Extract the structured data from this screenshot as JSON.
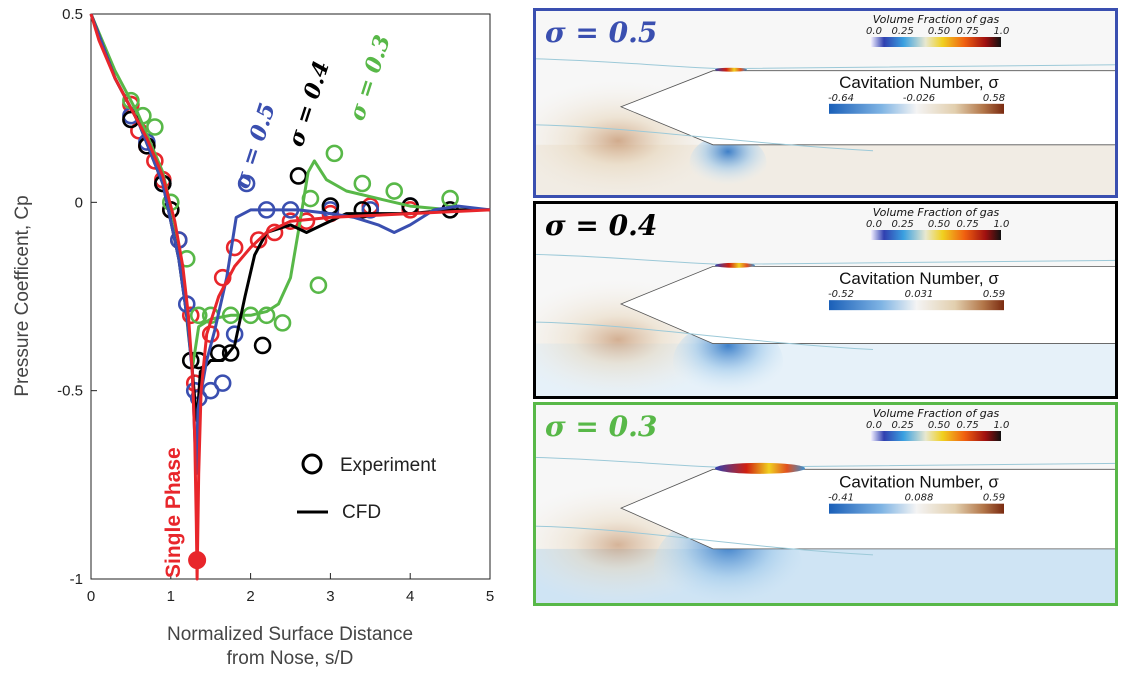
{
  "chart_data": {
    "type": "line",
    "xlabel": [
      "Normalized Surface Distance",
      "from Nose, s/D"
    ],
    "ylabel": "Pressure Coefficent, Cp",
    "xlim": [
      0,
      5
    ],
    "ylim": [
      -1,
      0.5
    ],
    "xticks": [
      "0",
      "1",
      "2",
      "3",
      "4",
      "5"
    ],
    "yticks": [
      "0.5",
      "0",
      "-0.5",
      "-1"
    ],
    "legend": {
      "experiment": "Experiment",
      "cfd": "CFD"
    },
    "series": [
      {
        "name": "Single Phase",
        "color": "#e8262b",
        "cfd": [
          [
            0,
            0.5
          ],
          [
            0.1,
            0.43
          ],
          [
            0.3,
            0.33
          ],
          [
            0.5,
            0.25
          ],
          [
            0.7,
            0.17
          ],
          [
            0.9,
            0.07
          ],
          [
            1.05,
            -0.05
          ],
          [
            1.15,
            -0.17
          ],
          [
            1.22,
            -0.3
          ],
          [
            1.27,
            -0.45
          ],
          [
            1.3,
            -0.62
          ],
          [
            1.32,
            -0.85
          ],
          [
            1.33,
            -1.0
          ],
          [
            1.35,
            -0.72
          ],
          [
            1.38,
            -0.5
          ],
          [
            1.45,
            -0.35
          ],
          [
            1.6,
            -0.25
          ],
          [
            1.8,
            -0.17
          ],
          [
            2.0,
            -0.12
          ],
          [
            2.2,
            -0.08
          ],
          [
            2.5,
            -0.05
          ],
          [
            3.0,
            -0.04
          ],
          [
            3.5,
            -0.035
          ],
          [
            4.0,
            -0.03
          ],
          [
            4.5,
            -0.025
          ],
          [
            5.0,
            -0.02
          ]
        ],
        "experiment": [
          [
            0.5,
            0.26
          ],
          [
            0.6,
            0.19
          ],
          [
            0.7,
            0.15
          ],
          [
            0.8,
            0.11
          ],
          [
            0.9,
            0.06
          ],
          [
            1.0,
            -0.02
          ],
          [
            1.1,
            -0.1
          ],
          [
            1.25,
            -0.3
          ],
          [
            1.3,
            -0.48
          ],
          [
            1.5,
            -0.35
          ],
          [
            1.65,
            -0.2
          ],
          [
            1.8,
            -0.12
          ],
          [
            2.1,
            -0.1
          ],
          [
            2.3,
            -0.08
          ],
          [
            2.5,
            -0.05
          ],
          [
            2.7,
            -0.05
          ],
          [
            3.0,
            -0.03
          ],
          [
            3.5,
            -0.01
          ],
          [
            4.0,
            -0.02
          ],
          [
            1.33,
            -0.95
          ]
        ]
      },
      {
        "name": "σ = 0.5",
        "color": "#3a4fb0",
        "cfd": [
          [
            0,
            0.5
          ],
          [
            0.3,
            0.33
          ],
          [
            0.6,
            0.21
          ],
          [
            0.9,
            0.05
          ],
          [
            1.1,
            -0.15
          ],
          [
            1.2,
            -0.3
          ],
          [
            1.27,
            -0.45
          ],
          [
            1.3,
            -0.62
          ],
          [
            1.32,
            -0.72
          ],
          [
            1.34,
            -0.55
          ],
          [
            1.45,
            -0.42
          ],
          [
            1.55,
            -0.34
          ],
          [
            1.7,
            -0.2
          ],
          [
            1.82,
            -0.04
          ],
          [
            2.0,
            -0.02
          ],
          [
            2.3,
            -0.02
          ],
          [
            2.6,
            -0.02
          ],
          [
            3.0,
            -0.03
          ],
          [
            3.3,
            -0.04
          ],
          [
            3.6,
            -0.06
          ],
          [
            3.8,
            -0.08
          ],
          [
            4.0,
            -0.06
          ],
          [
            4.3,
            -0.02
          ],
          [
            4.6,
            -0.01
          ],
          [
            5.0,
            -0.02
          ]
        ],
        "experiment": [
          [
            0.5,
            0.23
          ],
          [
            0.7,
            0.16
          ],
          [
            0.9,
            0.05
          ],
          [
            1.1,
            -0.1
          ],
          [
            1.2,
            -0.27
          ],
          [
            1.3,
            -0.5
          ],
          [
            1.35,
            -0.52
          ],
          [
            1.5,
            -0.5
          ],
          [
            1.65,
            -0.48
          ],
          [
            1.8,
            -0.35
          ],
          [
            1.95,
            0.05
          ],
          [
            2.2,
            -0.02
          ],
          [
            2.5,
            -0.02
          ],
          [
            3.0,
            -0.02
          ],
          [
            3.5,
            -0.02
          ],
          [
            4.0,
            -0.01
          ]
        ]
      },
      {
        "name": "σ = 0.4",
        "color": "#000000",
        "cfd": [
          [
            0,
            0.5
          ],
          [
            0.3,
            0.33
          ],
          [
            0.6,
            0.21
          ],
          [
            0.9,
            0.05
          ],
          [
            1.1,
            -0.15
          ],
          [
            1.2,
            -0.3
          ],
          [
            1.25,
            -0.4
          ],
          [
            1.3,
            -0.52
          ],
          [
            1.33,
            -0.58
          ],
          [
            1.37,
            -0.45
          ],
          [
            1.5,
            -0.42
          ],
          [
            1.65,
            -0.42
          ],
          [
            1.8,
            -0.38
          ],
          [
            1.93,
            -0.25
          ],
          [
            2.05,
            -0.14
          ],
          [
            2.2,
            -0.08
          ],
          [
            2.5,
            -0.06
          ],
          [
            2.7,
            -0.08
          ],
          [
            2.9,
            -0.06
          ],
          [
            3.2,
            -0.03
          ],
          [
            3.6,
            -0.03
          ],
          [
            4.0,
            -0.03
          ],
          [
            4.5,
            -0.02
          ],
          [
            5.0,
            -0.02
          ]
        ],
        "experiment": [
          [
            0.5,
            0.22
          ],
          [
            0.7,
            0.15
          ],
          [
            0.9,
            0.05
          ],
          [
            1.0,
            -0.02
          ],
          [
            1.25,
            -0.42
          ],
          [
            1.35,
            -0.42
          ],
          [
            1.6,
            -0.4
          ],
          [
            1.75,
            -0.4
          ],
          [
            2.15,
            -0.38
          ],
          [
            2.6,
            0.07
          ],
          [
            3.0,
            -0.01
          ],
          [
            3.4,
            -0.02
          ],
          [
            4.0,
            -0.01
          ],
          [
            4.5,
            -0.02
          ]
        ]
      },
      {
        "name": "σ = 0.3",
        "color": "#58b848",
        "cfd": [
          [
            0,
            0.5
          ],
          [
            0.3,
            0.35
          ],
          [
            0.6,
            0.23
          ],
          [
            0.9,
            0.08
          ],
          [
            1.05,
            -0.06
          ],
          [
            1.15,
            -0.2
          ],
          [
            1.22,
            -0.35
          ],
          [
            1.27,
            -0.44
          ],
          [
            1.3,
            -0.4
          ],
          [
            1.35,
            -0.33
          ],
          [
            1.5,
            -0.31
          ],
          [
            1.75,
            -0.3
          ],
          [
            2.0,
            -0.3
          ],
          [
            2.2,
            -0.29
          ],
          [
            2.35,
            -0.27
          ],
          [
            2.5,
            -0.2
          ],
          [
            2.62,
            -0.05
          ],
          [
            2.72,
            0.08
          ],
          [
            2.8,
            0.11
          ],
          [
            2.95,
            0.06
          ],
          [
            3.2,
            0.03
          ],
          [
            3.6,
            0.01
          ],
          [
            4.0,
            -0.01
          ],
          [
            4.5,
            -0.02
          ],
          [
            5.0,
            -0.02
          ]
        ],
        "experiment": [
          [
            0.5,
            0.27
          ],
          [
            0.65,
            0.23
          ],
          [
            0.8,
            0.2
          ],
          [
            1.0,
            0.0
          ],
          [
            1.2,
            -0.15
          ],
          [
            1.35,
            -0.3
          ],
          [
            1.5,
            -0.3
          ],
          [
            1.75,
            -0.3
          ],
          [
            2.0,
            -0.3
          ],
          [
            2.2,
            -0.3
          ],
          [
            2.4,
            -0.32
          ],
          [
            2.75,
            0.01
          ],
          [
            2.85,
            -0.22
          ],
          [
            3.05,
            0.13
          ],
          [
            3.4,
            0.05
          ],
          [
            3.8,
            0.03
          ],
          [
            4.5,
            0.01
          ]
        ]
      }
    ]
  },
  "panels": [
    {
      "sigma_label": "σ = 0.5",
      "border": "#3a4fb0",
      "vf_title": "Volume Fraction of gas",
      "vf_ticks": [
        "0.0",
        "0.25",
        "0.50",
        "0.75",
        "1.0"
      ],
      "cn_title": "Cavitation Number, σ",
      "cn_ticks": [
        "-0.64",
        "-0.026",
        "0.58"
      ]
    },
    {
      "sigma_label": "σ = 0.4",
      "border": "#000000",
      "vf_title": "Volume Fraction of gas",
      "vf_ticks": [
        "0.0",
        "0.25",
        "0.50",
        "0.75",
        "1.0"
      ],
      "cn_title": "Cavitation Number, σ",
      "cn_ticks": [
        "-0.52",
        "0.031",
        "0.59"
      ]
    },
    {
      "sigma_label": "σ = 0.3",
      "border": "#58b848",
      "vf_title": "Volume Fraction of gas",
      "vf_ticks": [
        "0.0",
        "0.25",
        "0.50",
        "0.75",
        "1.0"
      ],
      "cn_title": "Cavitation Number, σ",
      "cn_ticks": [
        "-0.41",
        "0.088",
        "0.59"
      ]
    }
  ]
}
